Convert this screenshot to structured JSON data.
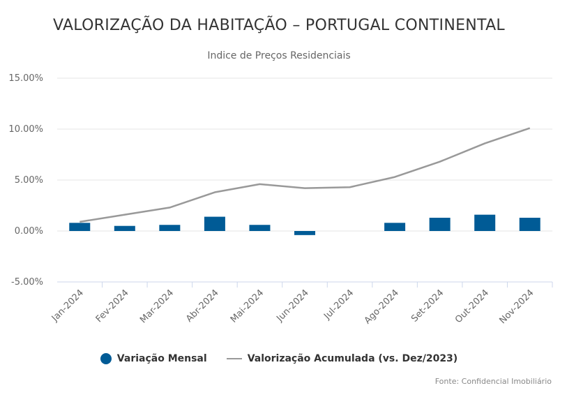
{
  "chart_data": {
    "type": "bar+line",
    "title": "VALORIZAÇÃO DA HABITAÇÃO – PORTUGAL CONTINENTAL",
    "subtitle": "Indice de Preços Residenciais",
    "categories": [
      "Jan-2024",
      "Fev-2024",
      "Mar-2024",
      "Abr-2024",
      "Mai-2024",
      "Jun-2024",
      "Jul-2024",
      "Ago-2024",
      "Set-2024",
      "Out-2024",
      "Nov-2024"
    ],
    "series": [
      {
        "name": "Variação Mensal",
        "type": "bar",
        "color": "#005b96",
        "values": [
          0.8,
          0.5,
          0.6,
          1.4,
          0.6,
          -0.4,
          0.0,
          0.8,
          1.3,
          1.6,
          1.3
        ]
      },
      {
        "name": "Valorização Acumulada (vs. Dez/2023)",
        "type": "line",
        "color": "#999999",
        "values": [
          0.9,
          1.6,
          2.3,
          3.8,
          4.6,
          4.2,
          4.3,
          5.3,
          6.8,
          8.6,
          10.1
        ]
      }
    ],
    "ylim": [
      -5,
      15
    ],
    "yticks": [
      "-5.00%",
      "0.00%",
      "5.00%",
      "10.00%",
      "15.00%"
    ],
    "ytick_values": [
      -5,
      0,
      5,
      10,
      15
    ],
    "grid": true,
    "legend_position": "bottom-center",
    "source": "Fonte: Confidencial Imobiliário"
  }
}
